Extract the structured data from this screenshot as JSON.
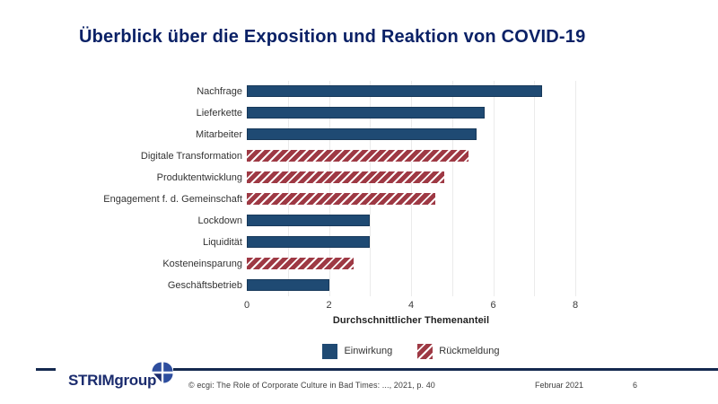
{
  "slide": {
    "title": "Überblick über die Exposition und Reaktion von COVID-19"
  },
  "chart_data": {
    "type": "bar",
    "orientation": "horizontal",
    "title": "",
    "categories": [
      "Nachfrage",
      "Lieferkette",
      "Mitarbeiter",
      "Digitale Transformation",
      "Produktentwicklung",
      "Engagement f. d. Gemeinschaft",
      "Lockdown",
      "Liquidität",
      "Kosteneinsparung",
      "Geschäftsbetrieb"
    ],
    "values": [
      7.2,
      5.8,
      5.6,
      5.4,
      4.8,
      4.6,
      3.0,
      3.0,
      2.6,
      2.0
    ],
    "series_membership": [
      "Einwirkung",
      "Einwirkung",
      "Einwirkung",
      "Rückmeldung",
      "Rückmeldung",
      "Rückmeldung",
      "Einwirkung",
      "Einwirkung",
      "Rückmeldung",
      "Einwirkung"
    ],
    "xlabel": "Durchschnittlicher Themenanteil",
    "ylabel": "",
    "xlim": [
      0,
      8
    ],
    "xticks": [
      0,
      2,
      4,
      6,
      8
    ],
    "gridlines": [
      1,
      2,
      3,
      4,
      5,
      6,
      7,
      8
    ],
    "grid": "on",
    "legend_position": "bottom",
    "legend": [
      {
        "label": "Einwirkung",
        "color": "#1f4a73",
        "pattern": "solid"
      },
      {
        "label": "Rückmeldung",
        "color": "#9e3944",
        "pattern": "hatched"
      }
    ]
  },
  "colors": {
    "title": "#0a2166",
    "bar_solid": "#1f4a73",
    "bar_hatched": "#9e3944",
    "footer_line": "#14294f",
    "logo_navy": "#1b2c6e",
    "logo_circle_blue": "#2e4e9e"
  },
  "footer": {
    "logo_strim": "STRIM",
    "logo_group": "group",
    "citation": "© ecgi: The Role of Corporate Culture in Bad Times: ..., 2021, p. 40",
    "date": "Februar 2021",
    "page_number": "6"
  }
}
